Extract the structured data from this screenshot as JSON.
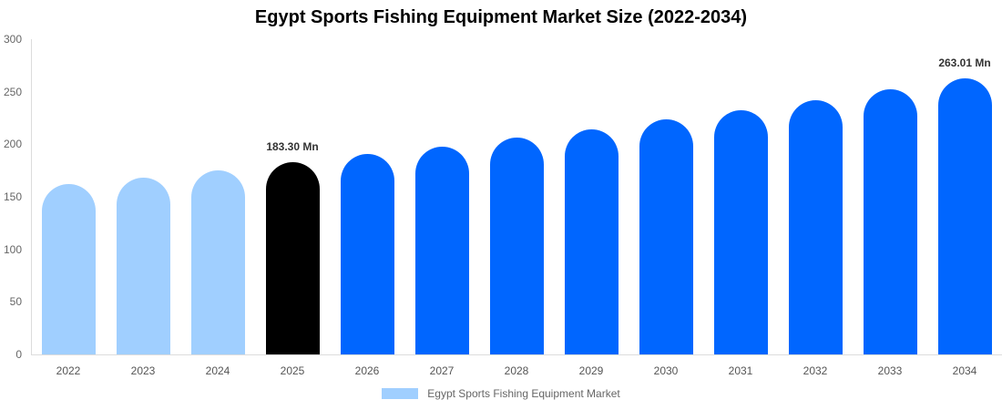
{
  "chart_data": {
    "type": "bar",
    "title": "Egypt Sports Fishing Equipment Market Size (2022-2034)",
    "xlabel": "",
    "ylabel": "",
    "ylim": [
      0,
      300
    ],
    "yticks": [
      0,
      50,
      100,
      150,
      200,
      250,
      300
    ],
    "grid": false,
    "legend_position": "bottom",
    "categories": [
      "2022",
      "2023",
      "2024",
      "2025",
      "2026",
      "2027",
      "2028",
      "2029",
      "2030",
      "2031",
      "2032",
      "2033",
      "2034"
    ],
    "series": [
      {
        "name": "Egypt Sports Fishing Equipment Market",
        "values": [
          161.9,
          168.5,
          175.4,
          183.3,
          190.5,
          198.0,
          206.3,
          214.4,
          223.7,
          232.4,
          241.9,
          252.3,
          263.01
        ]
      }
    ],
    "bar_colors": [
      "#a0cfff",
      "#a0cfff",
      "#a0cfff",
      "#000000",
      "#0066ff",
      "#0066ff",
      "#0066ff",
      "#0066ff",
      "#0066ff",
      "#0066ff",
      "#0066ff",
      "#0066ff",
      "#0066ff"
    ],
    "annotations": [
      {
        "category": "2025",
        "text": "183.30 Mn"
      },
      {
        "category": "2034",
        "text": "263.01 Mn"
      }
    ]
  },
  "legend": {
    "label": "Egypt Sports Fishing Equipment Market",
    "color": "#a0cfff"
  }
}
